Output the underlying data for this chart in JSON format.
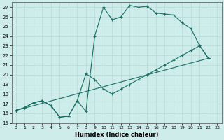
{
  "xlabel": "Humidex (Indice chaleur)",
  "background_color": "#ceecea",
  "grid_color": "#b8deda",
  "line_color": "#1a6e64",
  "xlim": [
    -0.5,
    23.5
  ],
  "ylim": [
    15,
    27.5
  ],
  "yticks": [
    15,
    16,
    17,
    18,
    19,
    20,
    21,
    22,
    23,
    24,
    25,
    26,
    27
  ],
  "xticks": [
    0,
    1,
    2,
    3,
    4,
    5,
    6,
    7,
    8,
    9,
    10,
    11,
    12,
    13,
    14,
    15,
    16,
    17,
    18,
    19,
    20,
    21,
    22,
    23
  ],
  "line1_x": [
    0,
    1,
    2,
    3,
    4,
    5,
    6,
    7,
    8,
    9,
    10,
    11,
    12,
    13,
    14,
    15,
    16,
    17,
    18,
    19,
    20,
    21,
    22
  ],
  "line1_y": [
    16.3,
    16.6,
    17.1,
    17.3,
    16.8,
    15.6,
    15.7,
    17.3,
    16.2,
    24.0,
    27.0,
    25.7,
    26.0,
    27.2,
    27.0,
    27.1,
    26.4,
    26.3,
    26.2,
    25.4,
    24.8,
    23.0,
    21.7
  ],
  "line2_x": [
    0,
    1,
    2,
    3,
    4,
    5,
    6,
    7,
    8,
    9,
    10,
    11,
    12,
    13,
    14,
    15,
    16,
    17,
    18,
    19,
    20,
    21,
    22
  ],
  "line2_y": [
    16.3,
    16.6,
    17.1,
    17.3,
    16.8,
    15.6,
    15.7,
    17.3,
    20.1,
    19.5,
    18.5,
    18.0,
    18.5,
    19.0,
    19.5,
    20.0,
    20.5,
    21.0,
    21.5,
    22.0,
    22.5,
    23.0,
    21.7
  ],
  "line3_x": [
    0,
    22
  ],
  "line3_y": [
    16.3,
    21.7
  ]
}
